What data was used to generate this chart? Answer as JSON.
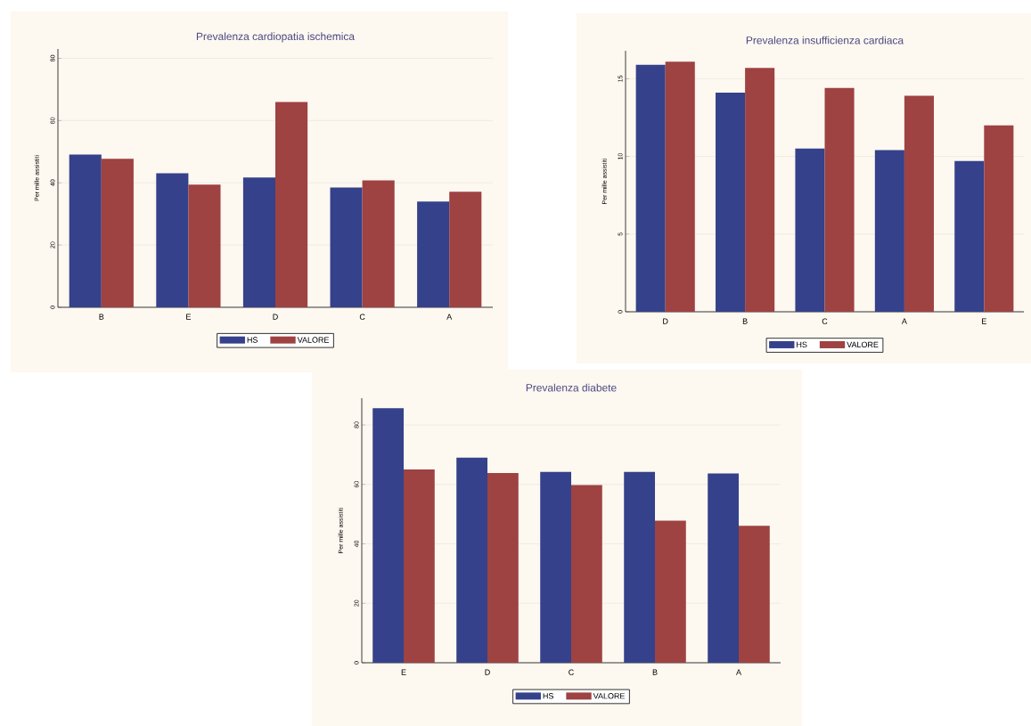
{
  "chart_data": [
    {
      "type": "bar",
      "title": "Prevalenza cardiopatia ischemica",
      "ylabel": "Per mille assistiti",
      "categories": [
        "B",
        "E",
        "D",
        "C",
        "A"
      ],
      "series": [
        {
          "name": "HS",
          "color": "#35418a",
          "values": [
            49.1,
            43.1,
            41.7,
            38.5,
            34.0
          ]
        },
        {
          "name": "VALORE",
          "color": "#9e4242",
          "values": [
            47.7,
            39.4,
            66.0,
            40.8,
            37.1
          ]
        }
      ],
      "ylim": [
        0,
        83
      ],
      "yticks": [
        0,
        20,
        40,
        60,
        80
      ],
      "grid": "y",
      "legend": "bottom"
    },
    {
      "type": "bar",
      "title": "Prevalenza insufficienza cardiaca",
      "ylabel": "Per mille assistiti",
      "categories": [
        "D",
        "B",
        "C",
        "A",
        "E"
      ],
      "series": [
        {
          "name": "HS",
          "color": "#35418a",
          "values": [
            15.9,
            14.1,
            10.5,
            10.4,
            9.7
          ]
        },
        {
          "name": "VALORE",
          "color": "#9e4242",
          "values": [
            16.1,
            15.7,
            14.4,
            13.9,
            12.0
          ]
        }
      ],
      "ylim": [
        0,
        16.8
      ],
      "yticks": [
        0,
        5,
        10,
        15
      ],
      "grid": "y",
      "legend": "bottom"
    },
    {
      "type": "bar",
      "title": "Prevalenza diabete",
      "ylabel": "Per mille assistiti",
      "categories": [
        "E",
        "D",
        "C",
        "B",
        "A"
      ],
      "series": [
        {
          "name": "HS",
          "color": "#35418a",
          "values": [
            85.6,
            69.0,
            64.2,
            64.2,
            63.7
          ]
        },
        {
          "name": "VALORE",
          "color": "#9e4242",
          "values": [
            65.0,
            63.8,
            59.8,
            47.8,
            46.1
          ]
        }
      ],
      "ylim": [
        0,
        89
      ],
      "yticks": [
        0,
        20,
        40,
        60,
        80
      ],
      "grid": "y",
      "legend": "bottom"
    }
  ]
}
